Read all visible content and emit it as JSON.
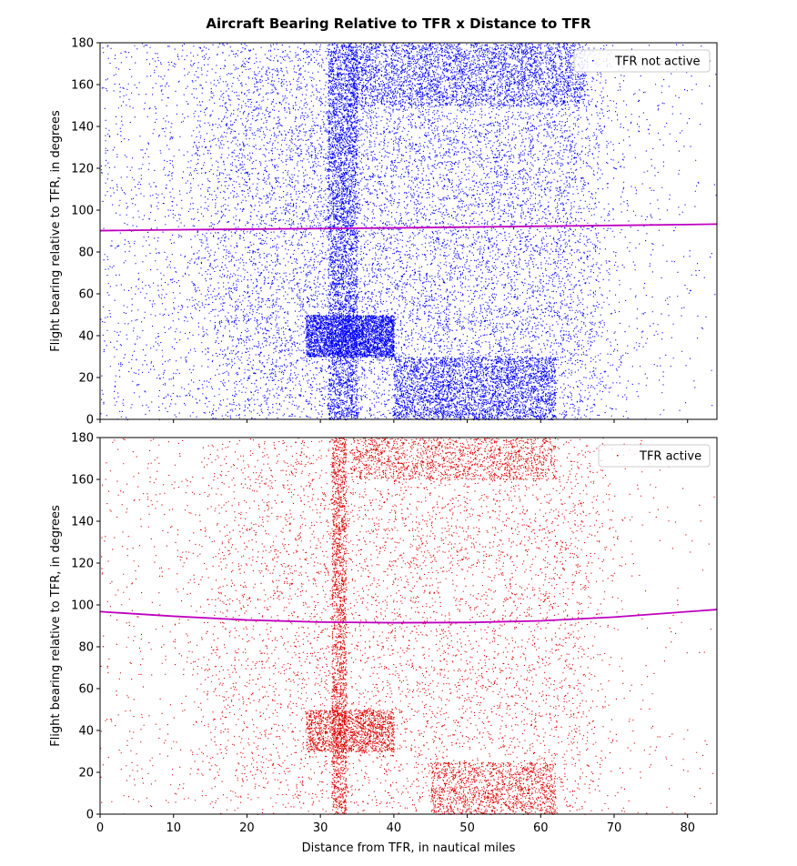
{
  "figure": {
    "suptitle": "Aircraft Bearing Relative to TFR x Distance to TFR"
  },
  "chart_data": [
    {
      "type": "scatter",
      "panel": "top",
      "title": "",
      "xlabel": "",
      "ylabel": "Flight bearing relative to TFR, in degrees",
      "xlim": [
        0,
        84
      ],
      "ylim": [
        0,
        180
      ],
      "xticks": [
        0,
        10,
        20,
        30,
        40,
        50,
        60,
        70,
        80
      ],
      "xticklabels_visible": false,
      "yticks": [
        0,
        20,
        40,
        60,
        80,
        100,
        120,
        140,
        160,
        180
      ],
      "grid": false,
      "legend": {
        "position": "top-right",
        "entries": [
          "TFR not active"
        ]
      },
      "series": [
        {
          "name": "TFR not active",
          "kind": "scatter",
          "color": "#0000ff",
          "approx_point_count": 30000,
          "notes_on_density": {
            "dense_vertical_band_x": [
              31,
              35
            ],
            "dense_regions": [
              {
                "x": [
                  34,
                  66
                ],
                "y": [
                  150,
                  180
                ]
              },
              {
                "x": [
                  28,
                  40
                ],
                "y": [
                  30,
                  50
                ]
              },
              {
                "x": [
                  40,
                  62
                ],
                "y": [
                  0,
                  30
                ]
              }
            ]
          }
        },
        {
          "name": "trend",
          "kind": "line",
          "color": "#bf00bf",
          "x": [
            0,
            10,
            20,
            30,
            40,
            50,
            60,
            70,
            84
          ],
          "y": [
            90.2,
            90.6,
            90.9,
            91.2,
            91.5,
            91.9,
            92.3,
            92.7,
            93.3
          ]
        }
      ]
    },
    {
      "type": "scatter",
      "panel": "bottom",
      "title": "",
      "xlabel": "Distance from TFR, in nautical miles",
      "ylabel": "Flight bearing relative to TFR, in degrees",
      "xlim": [
        0,
        84
      ],
      "ylim": [
        0,
        180
      ],
      "xticks": [
        0,
        10,
        20,
        30,
        40,
        50,
        60,
        70,
        80
      ],
      "xticklabels_visible": true,
      "yticks": [
        0,
        20,
        40,
        60,
        80,
        100,
        120,
        140,
        160,
        180
      ],
      "grid": false,
      "legend": {
        "position": "top-right",
        "entries": [
          "TFR active"
        ]
      },
      "series": [
        {
          "name": "TFR active",
          "kind": "scatter",
          "color": "#dd0000",
          "approx_point_count": 14000,
          "notes_on_density": {
            "dense_vertical_band_x": [
              31.5,
              33.5
            ],
            "dense_regions": [
              {
                "x": [
                  34,
                  62
                ],
                "y": [
                  160,
                  180
                ]
              },
              {
                "x": [
                  28,
                  40
                ],
                "y": [
                  30,
                  50
                ]
              },
              {
                "x": [
                  45,
                  62
                ],
                "y": [
                  0,
                  25
                ]
              }
            ]
          }
        },
        {
          "name": "trend",
          "kind": "line",
          "color": "#bf00bf",
          "x": [
            0,
            10,
            20,
            30,
            40,
            50,
            60,
            70,
            84
          ],
          "y": [
            96.8,
            94.6,
            92.8,
            91.8,
            91.5,
            91.6,
            92.4,
            94.2,
            97.8
          ]
        }
      ]
    }
  ]
}
